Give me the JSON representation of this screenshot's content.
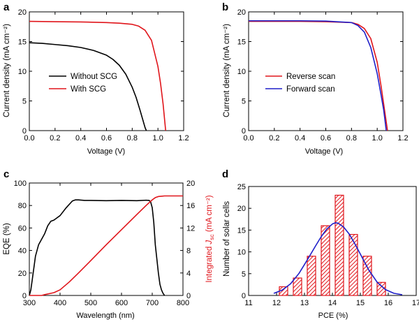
{
  "colors": {
    "black": "#000000",
    "red": "#e0151b",
    "blue": "#1f1fc9",
    "bar_fill": "#f2a7a5"
  },
  "chart_data": [
    {
      "id": "a",
      "panel_label": "a",
      "type": "line",
      "xlabel": "Voltage (V)",
      "ylabel": "Current density (mA cm⁻²)",
      "xlim": [
        0.0,
        1.2
      ],
      "ylim": [
        0,
        20
      ],
      "xticks": [
        "0.0",
        "0.2",
        "0.4",
        "0.6",
        "0.8",
        "1.0",
        "1.2"
      ],
      "yticks": [
        "0",
        "5",
        "10",
        "15",
        "20"
      ],
      "legend_position": "center-left",
      "series": [
        {
          "name": "Without SCG",
          "color": "#000000",
          "x": [
            0.0,
            0.1,
            0.2,
            0.3,
            0.4,
            0.5,
            0.6,
            0.65,
            0.7,
            0.75,
            0.8,
            0.83,
            0.86,
            0.88,
            0.9,
            0.91
          ],
          "y": [
            14.8,
            14.7,
            14.5,
            14.3,
            14.0,
            13.5,
            12.7,
            12.0,
            11.0,
            9.5,
            7.3,
            5.6,
            3.5,
            2.0,
            0.5,
            0
          ]
        },
        {
          "name": "With SCG",
          "color": "#e0151b",
          "x": [
            0.0,
            0.2,
            0.4,
            0.6,
            0.7,
            0.8,
            0.85,
            0.9,
            0.95,
            1.0,
            1.02,
            1.04,
            1.06
          ],
          "y": [
            18.4,
            18.35,
            18.3,
            18.2,
            18.1,
            17.9,
            17.6,
            16.9,
            15.2,
            10.8,
            8.0,
            4.5,
            0
          ]
        }
      ]
    },
    {
      "id": "b",
      "panel_label": "b",
      "type": "line",
      "xlabel": "Voltage (V)",
      "ylabel": "Current density (mA cm⁻²)",
      "xlim": [
        0.0,
        1.2
      ],
      "ylim": [
        0,
        20
      ],
      "xticks": [
        "0.0",
        "0.2",
        "0.4",
        "0.6",
        "0.8",
        "1.0",
        "1.2"
      ],
      "yticks": [
        "0",
        "5",
        "10",
        "15",
        "20"
      ],
      "legend_position": "center-right",
      "series": [
        {
          "name": "Reverse scan",
          "color": "#e0151b",
          "x": [
            0.0,
            0.2,
            0.4,
            0.6,
            0.8,
            0.85,
            0.9,
            0.95,
            1.0,
            1.03,
            1.05,
            1.07,
            1.08
          ],
          "y": [
            18.4,
            18.4,
            18.4,
            18.35,
            18.2,
            17.9,
            17.2,
            15.5,
            11.5,
            7.5,
            4.5,
            1.5,
            0
          ]
        },
        {
          "name": "Forward scan",
          "color": "#1f1fc9",
          "x": [
            0.0,
            0.2,
            0.4,
            0.6,
            0.8,
            0.85,
            0.9,
            0.95,
            1.0,
            1.03,
            1.05,
            1.06,
            1.07
          ],
          "y": [
            18.5,
            18.5,
            18.5,
            18.45,
            18.2,
            17.7,
            16.6,
            14.0,
            9.6,
            6.0,
            3.5,
            1.8,
            0
          ]
        }
      ]
    },
    {
      "id": "c",
      "panel_label": "c",
      "type": "line",
      "xlabel": "Wavelength (nm)",
      "ylabel": "EQE (%)",
      "y2label": "Integrated J_sc (mA cm⁻²)",
      "y2label_main": "Integrated ",
      "y2label_italic": "J",
      "y2label_sub": "sc",
      "y2label_tail": " (mA cm⁻²)",
      "xlim": [
        300,
        800
      ],
      "ylim": [
        0,
        100
      ],
      "y2lim": [
        0,
        20
      ],
      "xticks": [
        "300",
        "400",
        "500",
        "600",
        "700",
        "800"
      ],
      "yticks": [
        "0",
        "20",
        "40",
        "60",
        "80",
        "100"
      ],
      "y2ticks": [
        "0",
        "4",
        "8",
        "12",
        "16",
        "20"
      ],
      "series": [
        {
          "name": "EQE",
          "axis": "left",
          "color": "#000000",
          "x": [
            300,
            305,
            310,
            320,
            330,
            340,
            350,
            360,
            370,
            380,
            390,
            400,
            420,
            440,
            450,
            460,
            480,
            500,
            550,
            600,
            650,
            680,
            690,
            695,
            700,
            705,
            710,
            720,
            725,
            730,
            735,
            740
          ],
          "y": [
            0,
            5,
            15,
            35,
            45,
            50,
            55,
            62,
            66,
            67,
            69,
            71,
            78,
            84,
            85,
            85,
            84.5,
            84.5,
            84.3,
            84.5,
            84.3,
            84.7,
            84.5,
            83,
            78,
            65,
            45,
            20,
            10,
            5,
            2,
            0
          ]
        },
        {
          "name": "Integrated Jsc",
          "axis": "right",
          "color": "#e0151b",
          "x": [
            300,
            340,
            350,
            380,
            400,
            430,
            460,
            500,
            550,
            600,
            650,
            680,
            700,
            710,
            720,
            730,
            740,
            760,
            780,
            800
          ],
          "y": [
            0,
            0,
            0.15,
            0.5,
            1.0,
            2.4,
            4.0,
            6.2,
            9.0,
            11.7,
            14.4,
            16.0,
            17.0,
            17.4,
            17.6,
            17.65,
            17.7,
            17.7,
            17.7,
            17.7
          ]
        }
      ]
    },
    {
      "id": "d",
      "panel_label": "d",
      "type": "bar",
      "xlabel": "PCE (%)",
      "ylabel": "Number of solar cells",
      "xlim": [
        11,
        17
      ],
      "ylim": [
        0,
        25
      ],
      "xticks": [
        "11",
        "12",
        "13",
        "14",
        "15",
        "16",
        "17"
      ],
      "yticks": [
        "0",
        "5",
        "10",
        "15",
        "20",
        "25"
      ],
      "bar_width": 0.3,
      "categories": [
        12.25,
        12.75,
        13.25,
        13.75,
        14.25,
        14.75,
        15.25,
        15.75
      ],
      "values": [
        2,
        4,
        9,
        16,
        23,
        14,
        9,
        3
      ],
      "fit": {
        "color": "#1f1fc9",
        "x": [
          11.9,
          12.2,
          12.5,
          12.8,
          13.1,
          13.4,
          13.6,
          13.8,
          14.0,
          14.1,
          14.2,
          14.4,
          14.6,
          14.8,
          15.0,
          15.3,
          15.6,
          15.9,
          16.2,
          16.5
        ],
        "y": [
          0.48,
          1.22,
          2.67,
          5.02,
          8.14,
          11.4,
          13.5,
          15.25,
          16.4,
          16.67,
          16.6,
          15.7,
          14.1,
          11.9,
          9.5,
          5.85,
          3.05,
          1.34,
          0.5,
          0.16
        ]
      }
    }
  ]
}
